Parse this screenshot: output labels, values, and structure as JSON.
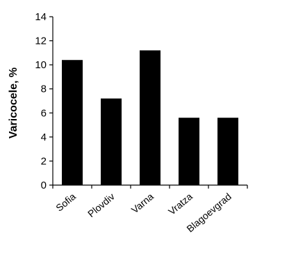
{
  "chart_data": {
    "type": "bar",
    "title": "",
    "xlabel": "",
    "ylabel": "Varicocele, %",
    "categories": [
      "Sofia",
      "Plovdiv",
      "Varna",
      "Vratza",
      "Blagoevgrad"
    ],
    "values": [
      10.4,
      7.2,
      11.2,
      5.6,
      5.6
    ],
    "ylim": [
      0,
      14
    ],
    "yticks": [
      0,
      2,
      4,
      6,
      8,
      10,
      12,
      14
    ],
    "grid": false,
    "legend": "none",
    "bar_color": "#000000",
    "axis_color": "#000000"
  }
}
